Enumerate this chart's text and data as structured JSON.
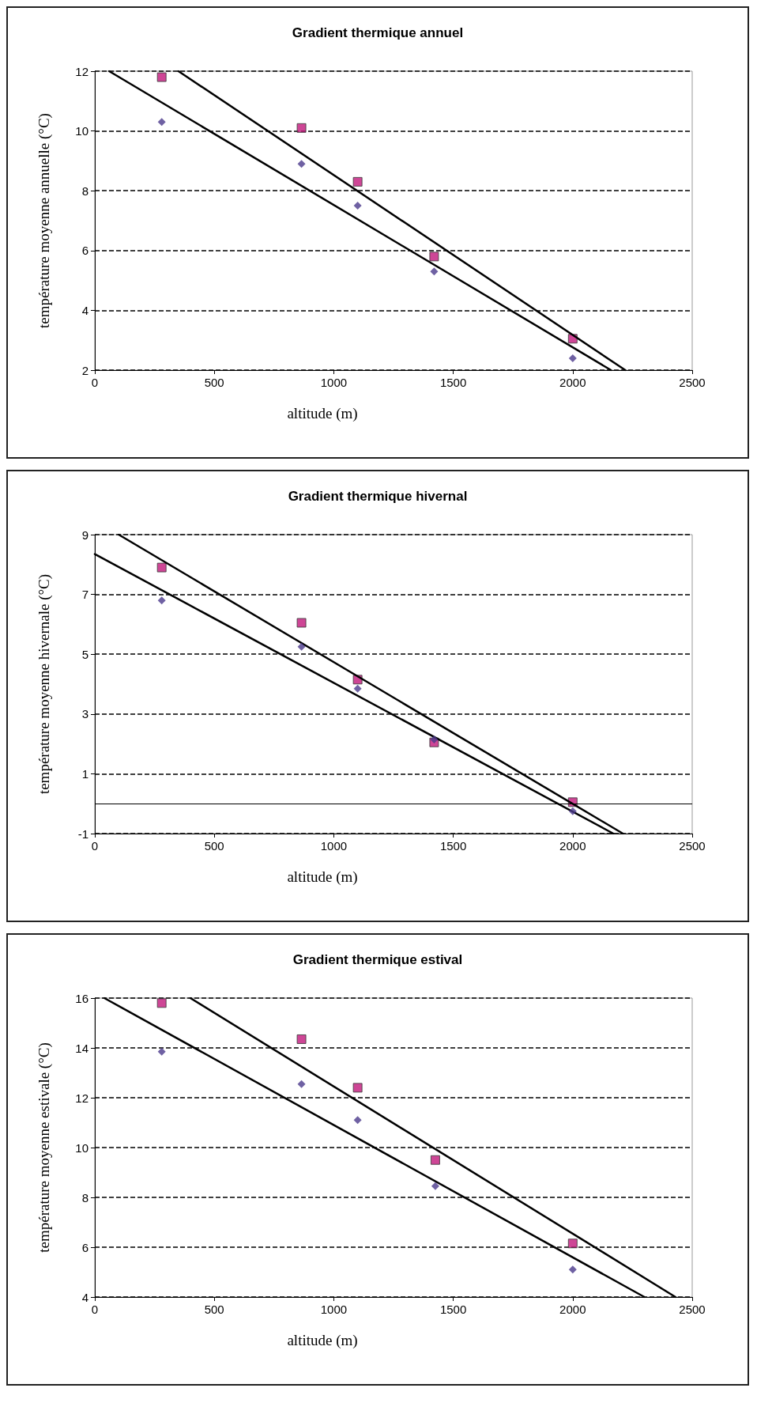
{
  "chart_data": [
    {
      "type": "scatter",
      "title": "Gradient thermique annuel",
      "xlabel": "altitude (m)",
      "ylabel": "température moyenne annuelle (°C)",
      "xlim": [
        0,
        2500
      ],
      "xticks": [
        0,
        500,
        1000,
        1500,
        2000,
        2500
      ],
      "ylim": [
        2,
        12
      ],
      "yticks": [
        2,
        4,
        6,
        8,
        10,
        12
      ],
      "grid": "y",
      "series": [
        {
          "marker": "diamond",
          "color": "#4b3a8c",
          "x": [
            280,
            865,
            1100,
            1420,
            2000
          ],
          "values": [
            10.3,
            8.9,
            7.5,
            5.3,
            2.4
          ]
        },
        {
          "marker": "square",
          "color": "#c2187c",
          "x": [
            280,
            865,
            1100,
            1420,
            2000
          ],
          "values": [
            11.8,
            10.1,
            8.3,
            5.8,
            3.05
          ]
        },
        {
          "type": "line",
          "marker": "none",
          "line_style": "solid",
          "color": "#000000",
          "x": [
            60,
            2160
          ],
          "values": [
            12,
            2
          ]
        },
        {
          "type": "line",
          "marker": "none",
          "line_style": "solid",
          "color": "#000000",
          "x": [
            350,
            2220
          ],
          "values": [
            12,
            2
          ]
        }
      ]
    },
    {
      "type": "scatter",
      "title": "Gradient thermique hivernal",
      "xlabel": "altitude (m)",
      "ylabel": "température moyenne hivernale (°C)",
      "xlim": [
        0,
        2500
      ],
      "xticks": [
        0,
        500,
        1000,
        1500,
        2000,
        2500
      ],
      "ylim": [
        -1,
        9
      ],
      "yticks": [
        -1,
        1,
        3,
        5,
        7,
        9
      ],
      "grid": "y",
      "ref_lines": [
        {
          "axis": "y",
          "value": 0,
          "color": "#000000",
          "line_style": "solid"
        }
      ],
      "series": [
        {
          "marker": "diamond",
          "color": "#4b3a8c",
          "x": [
            280,
            865,
            1100,
            1420,
            2000
          ],
          "values": [
            6.8,
            5.25,
            3.85,
            2.15,
            -0.25
          ]
        },
        {
          "marker": "square",
          "color": "#c2187c",
          "x": [
            280,
            865,
            1100,
            1420,
            2000
          ],
          "values": [
            7.9,
            6.05,
            4.15,
            2.05,
            0.05
          ]
        },
        {
          "type": "line",
          "marker": "none",
          "line_style": "solid",
          "color": "#000000",
          "x": [
            0,
            2170
          ],
          "values": [
            8.35,
            -1
          ]
        },
        {
          "type": "line",
          "marker": "none",
          "line_style": "solid",
          "color": "#000000",
          "x": [
            100,
            2210
          ],
          "values": [
            9,
            -1
          ]
        }
      ]
    },
    {
      "type": "scatter",
      "title": "Gradient thermique estival",
      "xlabel": "altitude (m)",
      "ylabel": "température moyenne estivale (°C)",
      "xlim": [
        0,
        2500
      ],
      "xticks": [
        0,
        500,
        1000,
        1500,
        2000,
        2500
      ],
      "ylim": [
        4,
        16
      ],
      "yticks": [
        4,
        6,
        8,
        10,
        12,
        14,
        16
      ],
      "grid": "y",
      "series": [
        {
          "marker": "diamond",
          "color": "#4b3a8c",
          "x": [
            280,
            865,
            1100,
            1425,
            2000
          ],
          "values": [
            13.85,
            12.55,
            11.1,
            8.45,
            5.1
          ]
        },
        {
          "marker": "square",
          "color": "#c2187c",
          "x": [
            280,
            865,
            1100,
            1425,
            2000
          ],
          "values": [
            15.8,
            14.35,
            12.4,
            9.5,
            6.15
          ]
        },
        {
          "type": "line",
          "marker": "none",
          "line_style": "solid",
          "color": "#000000",
          "x": [
            40,
            2300
          ],
          "values": [
            16,
            4
          ]
        },
        {
          "type": "line",
          "marker": "none",
          "line_style": "solid",
          "color": "#000000",
          "x": [
            400,
            2430
          ],
          "values": [
            16,
            4
          ]
        }
      ]
    }
  ]
}
